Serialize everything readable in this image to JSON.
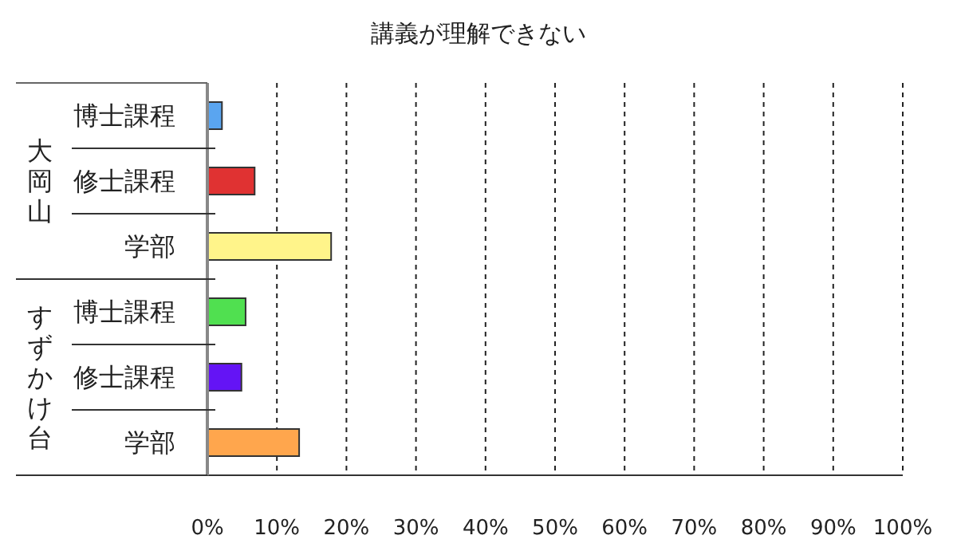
{
  "chart_data": {
    "type": "bar",
    "orientation": "horizontal",
    "title": "講義が理解できない",
    "categories": [
      "博士課程",
      "修士課程",
      "学部",
      "博士課程",
      "修士課程",
      "学部"
    ],
    "values": [
      2.1,
      6.8,
      17.8,
      5.5,
      4.9,
      13.2
    ],
    "colors": [
      "#5aa5f0",
      "#e03232",
      "#fff48a",
      "#50e050",
      "#6414f5",
      "#ffa64d"
    ],
    "xlim": [
      0,
      100
    ],
    "xticks": [
      {
        "value": 0,
        "label": "0%"
      },
      {
        "value": 10,
        "label": "10%"
      },
      {
        "value": 20,
        "label": "20%"
      },
      {
        "value": 30,
        "label": "30%"
      },
      {
        "value": 40,
        "label": "40%"
      },
      {
        "value": 50,
        "label": "50%"
      },
      {
        "value": 60,
        "label": "60%"
      },
      {
        "value": 70,
        "label": "70%"
      },
      {
        "value": 80,
        "label": "80%"
      },
      {
        "value": 90,
        "label": "90%"
      },
      {
        "value": 100,
        "label": "100%"
      }
    ],
    "grid": "x",
    "annotations": [
      "大岡山",
      "すずかけ台"
    ]
  }
}
